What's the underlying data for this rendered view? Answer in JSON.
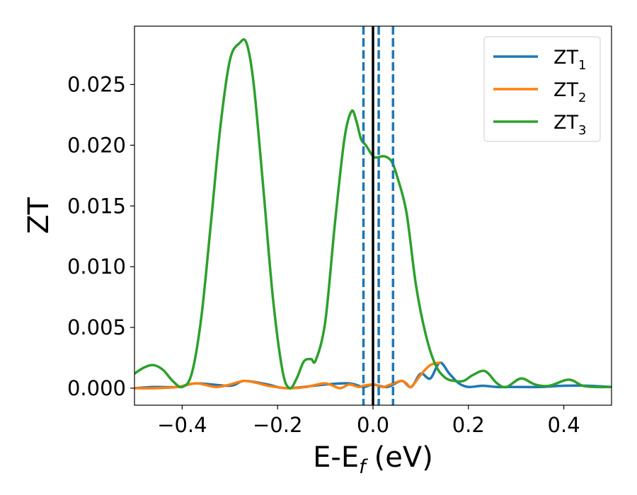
{
  "chart_data": {
    "type": "line",
    "xlabel": "E-E",
    "xlabel_sub": "f",
    "xlabel_unit": "(eV)",
    "ylabel": "ZT",
    "xlim": [
      -0.5,
      0.5
    ],
    "ylim": [
      -0.0014,
      0.0298
    ],
    "xticks": [
      -0.4,
      -0.2,
      0.0,
      0.2,
      0.4
    ],
    "xtick_labels": [
      "−0.4",
      "−0.2",
      "0.0",
      "0.2",
      "0.4"
    ],
    "yticks": [
      0.0,
      0.005,
      0.01,
      0.015,
      0.02,
      0.025
    ],
    "ytick_labels": [
      "0.000",
      "0.005",
      "0.010",
      "0.015",
      "0.020",
      "0.025"
    ],
    "legend_position": "top-right",
    "series": [
      {
        "name": "ZT",
        "name_sub": "1",
        "color": "#1f77b4",
        "x": [
          -0.5,
          -0.46,
          -0.41,
          -0.37,
          -0.3,
          -0.27,
          -0.22,
          -0.18,
          -0.1,
          -0.05,
          -0.02,
          0.0,
          0.03,
          0.06,
          0.08,
          0.1,
          0.12,
          0.14,
          0.16,
          0.18,
          0.2,
          0.23,
          0.26,
          0.3,
          0.35,
          0.4,
          0.45,
          0.5
        ],
        "y": [
          0.0,
          0.0001,
          0.0001,
          0.0004,
          0.0002,
          0.0006,
          0.0003,
          0.0,
          0.0003,
          0.0004,
          0.0001,
          0.0003,
          0.0001,
          0.0006,
          0.0001,
          0.0012,
          0.0008,
          0.0021,
          0.0012,
          0.0004,
          0.0001,
          0.0002,
          0.0001,
          0.0001,
          0.0001,
          0.0002,
          0.0002,
          0.0001
        ]
      },
      {
        "name": "ZT",
        "name_sub": "2",
        "color": "#ff7f0e",
        "x": [
          -0.5,
          -0.46,
          -0.41,
          -0.37,
          -0.33,
          -0.3,
          -0.27,
          -0.24,
          -0.22,
          -0.18,
          -0.14,
          -0.1,
          -0.07,
          -0.05,
          -0.03,
          -0.02,
          0.0,
          0.02,
          0.03,
          0.05,
          0.06,
          0.07,
          0.08,
          0.1,
          0.12,
          0.14
        ],
        "y": [
          0.0,
          0.0,
          0.0001,
          0.0004,
          0.0001,
          0.0003,
          0.0006,
          0.0004,
          0.0002,
          0.0,
          0.0001,
          0.0004,
          0.0,
          0.0003,
          0.0001,
          0.0002,
          0.0003,
          0.0001,
          0.0002,
          0.0005,
          0.0006,
          0.0004,
          0.0001,
          0.0011,
          0.0019,
          0.0021
        ]
      },
      {
        "name": "ZT",
        "name_sub": "3",
        "color": "#2ca02c",
        "x": [
          -0.5,
          -0.48,
          -0.46,
          -0.44,
          -0.42,
          -0.4,
          -0.38,
          -0.36,
          -0.34,
          -0.32,
          -0.3,
          -0.28,
          -0.265,
          -0.25,
          -0.23,
          -0.21,
          -0.19,
          -0.175,
          -0.16,
          -0.145,
          -0.13,
          -0.12,
          -0.1,
          -0.08,
          -0.06,
          -0.045,
          -0.035,
          -0.025,
          -0.015,
          0.0,
          0.01,
          0.02,
          0.03,
          0.04,
          0.05,
          0.07,
          0.09,
          0.11,
          0.13,
          0.15,
          0.17,
          0.19,
          0.21,
          0.235,
          0.26,
          0.28,
          0.31,
          0.34,
          0.37,
          0.41,
          0.44,
          0.47,
          0.5
        ],
        "y": [
          0.0012,
          0.0017,
          0.0019,
          0.0015,
          0.0006,
          0.0001,
          0.0012,
          0.0058,
          0.0135,
          0.0215,
          0.027,
          0.0284,
          0.0284,
          0.025,
          0.0165,
          0.0075,
          0.0015,
          0.0,
          0.0008,
          0.0022,
          0.0024,
          0.0023,
          0.0055,
          0.0135,
          0.0205,
          0.0228,
          0.022,
          0.0205,
          0.02,
          0.0191,
          0.019,
          0.0191,
          0.019,
          0.0186,
          0.0175,
          0.0145,
          0.0085,
          0.0045,
          0.002,
          0.0009,
          0.0006,
          0.0006,
          0.0011,
          0.0014,
          0.0004,
          0.0001,
          0.0008,
          0.0003,
          0.0002,
          0.0007,
          0.0002,
          0.0001,
          0.0001
        ]
      }
    ],
    "vlines": [
      {
        "x": 0.0,
        "style": "solid",
        "color": "#000000"
      },
      {
        "x": -0.02,
        "style": "dashed",
        "color": "#1f77b4"
      },
      {
        "x": 0.012,
        "style": "dashed",
        "color": "#1f77b4"
      },
      {
        "x": 0.042,
        "style": "dashed",
        "color": "#1f77b4"
      }
    ]
  }
}
